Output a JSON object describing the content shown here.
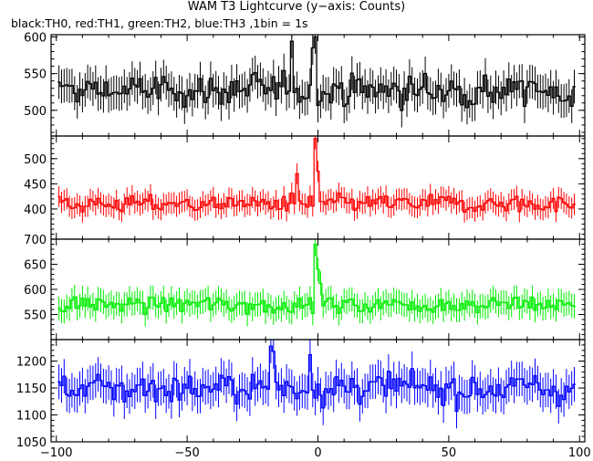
{
  "chart_data": {
    "type": "line",
    "title": "WAM T3 Lightcurve (y−axis: Counts)",
    "subtitle": "black:TH0, red:TH1, green:TH2, blue:TH3 ,1bin = 1s",
    "xlim": [
      -102,
      102
    ],
    "xticks": [
      -100,
      -50,
      0,
      50,
      100
    ],
    "xtick_labels": [
      "−100",
      "−50",
      "0",
      "50",
      "100"
    ],
    "x_range_data": [
      -99,
      98
    ],
    "bin_width": 1,
    "panels": [
      {
        "series_name": "TH0",
        "color": "#000000",
        "ylim": [
          465,
          603
        ],
        "yticks": [
          500,
          550,
          600
        ],
        "baseline": 527,
        "noise": 22,
        "error_bar": 23,
        "spikes": [
          [
            -1,
            600
          ],
          [
            -10,
            594
          ],
          [
            -2,
            585
          ]
        ]
      },
      {
        "series_name": "TH1",
        "color": "#ff0000",
        "ylim": [
          340,
          545
        ],
        "yticks": [
          400,
          450,
          500
        ],
        "baseline": 410,
        "noise": 18,
        "error_bar": 21,
        "spikes": [
          [
            -1,
            540
          ],
          [
            0,
            475
          ],
          [
            -8,
            470
          ]
        ]
      },
      {
        "series_name": "TH2",
        "color": "#00ee00",
        "ylim": [
          500,
          700
        ],
        "yticks": [
          550,
          600,
          650,
          700
        ],
        "baseline": 570,
        "noise": 18,
        "error_bar": 24,
        "spikes": [
          [
            -1,
            690
          ],
          [
            0,
            640
          ],
          [
            1,
            612
          ]
        ]
      },
      {
        "series_name": "TH3",
        "color": "#0000ff",
        "ylim": [
          1050,
          1240
        ],
        "yticks": [
          1050,
          1100,
          1150,
          1200
        ],
        "baseline": 1150,
        "noise": 28,
        "error_bar": 32,
        "spikes": [
          [
            -18,
            1228
          ],
          [
            -17,
            1218
          ],
          [
            -3,
            1212
          ]
        ]
      }
    ]
  }
}
